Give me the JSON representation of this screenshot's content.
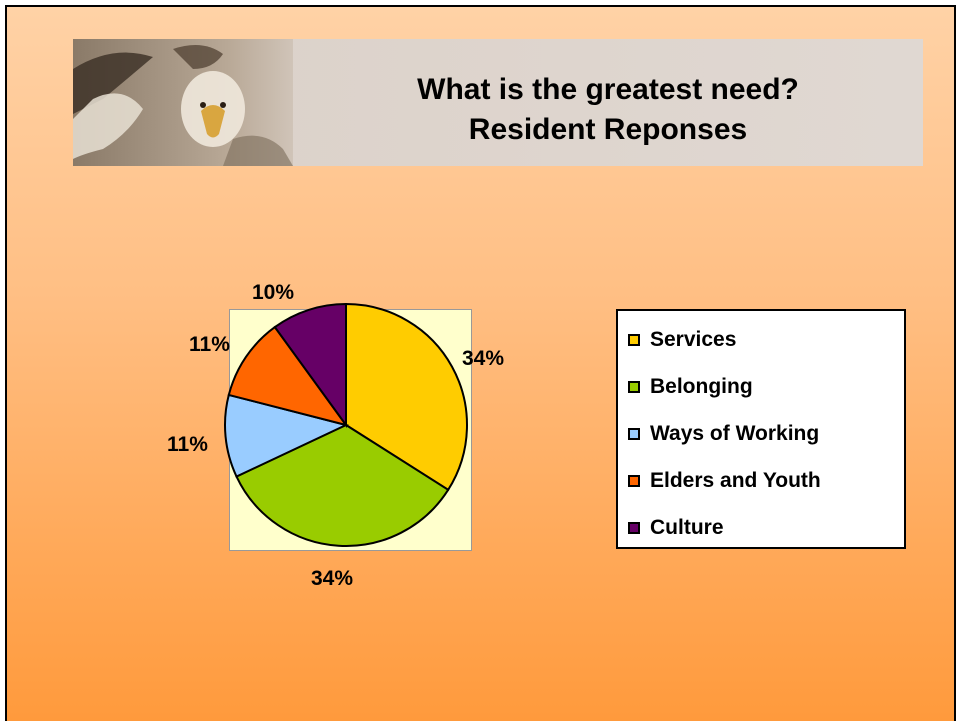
{
  "slide": {
    "title_line1": "What is the greatest need?",
    "title_line2": "Resident Reponses"
  },
  "chart_data": {
    "type": "pie",
    "title": "",
    "categories": [
      "Services",
      "Belonging",
      "Ways of Working",
      "Elders and Youth",
      "Culture"
    ],
    "values": [
      34,
      34,
      11,
      11,
      10
    ],
    "labels": [
      "34%",
      "34%",
      "11%",
      "11%",
      "10%"
    ],
    "colors": [
      "#ffcc00",
      "#99cc00",
      "#99ccff",
      "#ff6600",
      "#660066"
    ],
    "plot_background": "#ffffcc",
    "legend_position": "right"
  },
  "legend": {
    "items": [
      {
        "label": "Services",
        "color": "#ffcc00"
      },
      {
        "label": "Belonging",
        "color": "#99cc00"
      },
      {
        "label": "Ways of Working",
        "color": "#99ccff"
      },
      {
        "label": "Elders and Youth",
        "color": "#ff6600"
      },
      {
        "label": "Culture",
        "color": "#660066"
      }
    ]
  }
}
